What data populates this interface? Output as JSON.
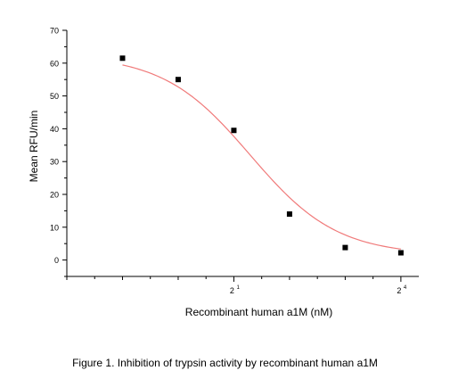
{
  "chart_data": {
    "type": "scatter",
    "title": "",
    "xlabel": "Recombinant human a1M (nM)",
    "ylabel": "Mean RFU/min",
    "x_scale": "log2",
    "xlim": [
      0.25,
      20
    ],
    "ylim": [
      -5,
      70
    ],
    "y_ticks": [
      0,
      10,
      20,
      30,
      40,
      50,
      60,
      70
    ],
    "x_tick_labels": [
      {
        "x": 2,
        "base": "2",
        "exponent": "1"
      },
      {
        "x": 16,
        "base": "2",
        "exponent": "4"
      }
    ],
    "series": [
      {
        "points": [
          {
            "x": 0.5,
            "y": 61.5
          },
          {
            "x": 1,
            "y": 55
          },
          {
            "x": 2,
            "y": 39.5
          },
          {
            "x": 4,
            "y": 14
          },
          {
            "x": 8,
            "y": 3.8
          },
          {
            "x": 16,
            "y": 2.2
          }
        ],
        "marker_color": "#000000"
      }
    ],
    "fit_curve": {
      "model": "four-parameter logistic",
      "top": 62.5,
      "bottom": 1.5,
      "ec50": 2.45,
      "hill": 1.85,
      "color": "#f07a7a"
    },
    "grid": false,
    "legend": "none"
  },
  "caption": {
    "text": "Figure 1. Inhibition of trypsin activity by recombinant human a",
    "suffix": "1M"
  }
}
